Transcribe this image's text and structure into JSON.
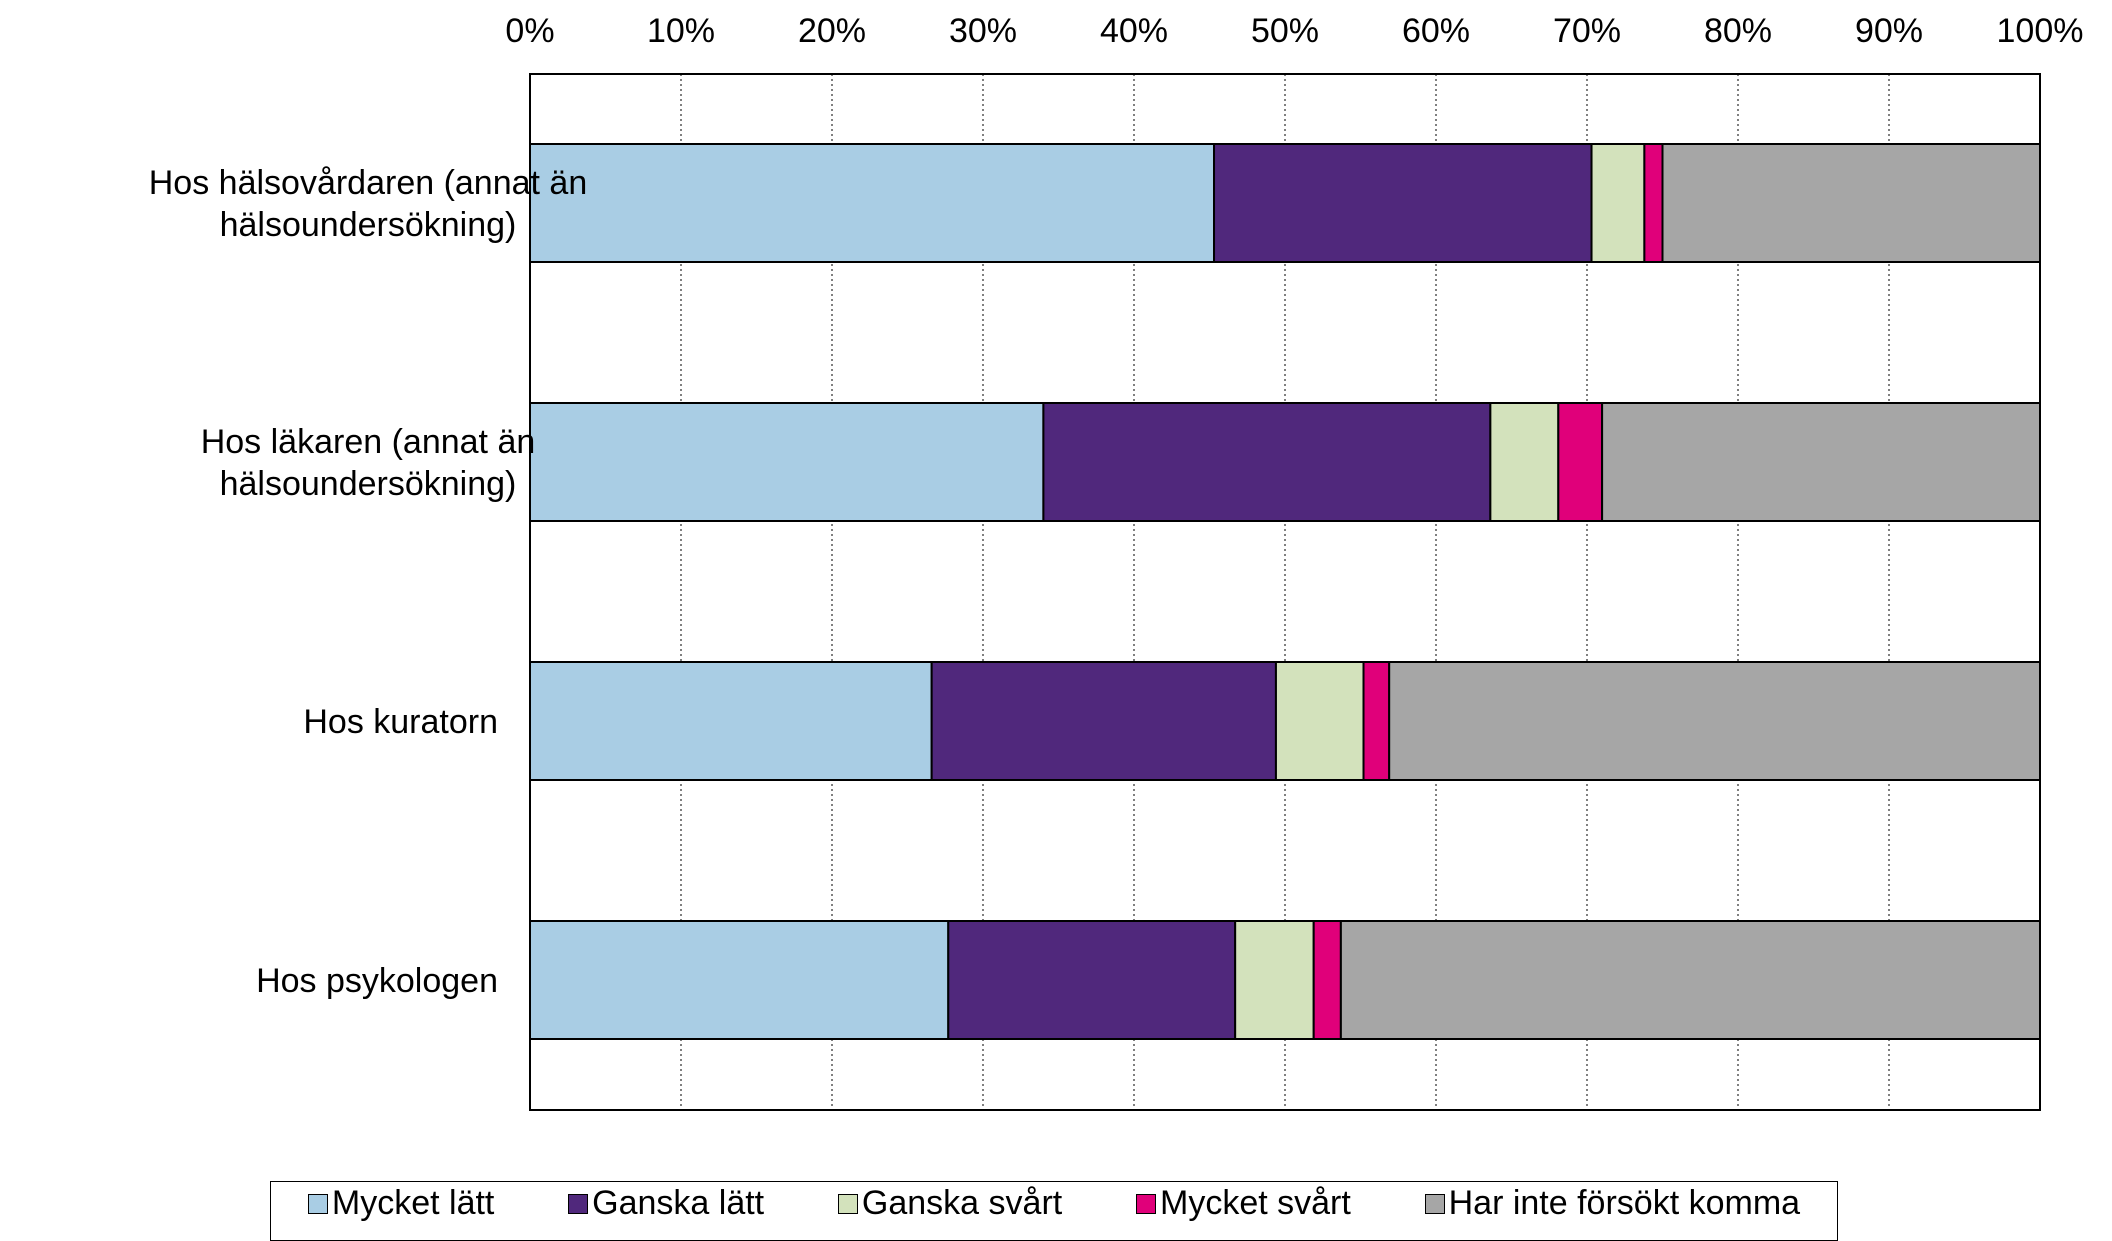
{
  "chart_data": {
    "type": "bar",
    "orientation": "horizontal",
    "stacked": "percent",
    "categories": [
      [
        "Hos hälsovårdaren (annat än",
        "hälsoundersökning)"
      ],
      [
        "Hos läkaren (annat än",
        "hälsoundersökning)"
      ],
      [
        "Hos kuratorn"
      ],
      [
        "Hos psykologen"
      ]
    ],
    "series": [
      {
        "name": "Mycket lätt",
        "color": "#a9cde4",
        "values": [
          45.3,
          34.0,
          26.6,
          27.7
        ]
      },
      {
        "name": "Ganska lätt",
        "color": "#50287c",
        "values": [
          25.0,
          29.6,
          22.8,
          19.0
        ]
      },
      {
        "name": "Ganska svårt",
        "color": "#d3e2bc",
        "values": [
          3.5,
          4.5,
          5.8,
          5.2
        ]
      },
      {
        "name": "Mycket svårt",
        "color": "#e0007a",
        "values": [
          1.2,
          2.9,
          1.7,
          1.8
        ]
      },
      {
        "name": "Har inte försökt komma",
        "color": "#a6a6a6",
        "values": [
          25.0,
          29.0,
          43.1,
          46.3
        ]
      }
    ],
    "x_ticks": [
      "0%",
      "10%",
      "20%",
      "30%",
      "40%",
      "50%",
      "60%",
      "70%",
      "80%",
      "90%",
      "100%"
    ],
    "xlim": [
      0,
      100
    ],
    "x_axis_position": "top",
    "grid": "vertical dotted",
    "legend_position": "bottom"
  }
}
